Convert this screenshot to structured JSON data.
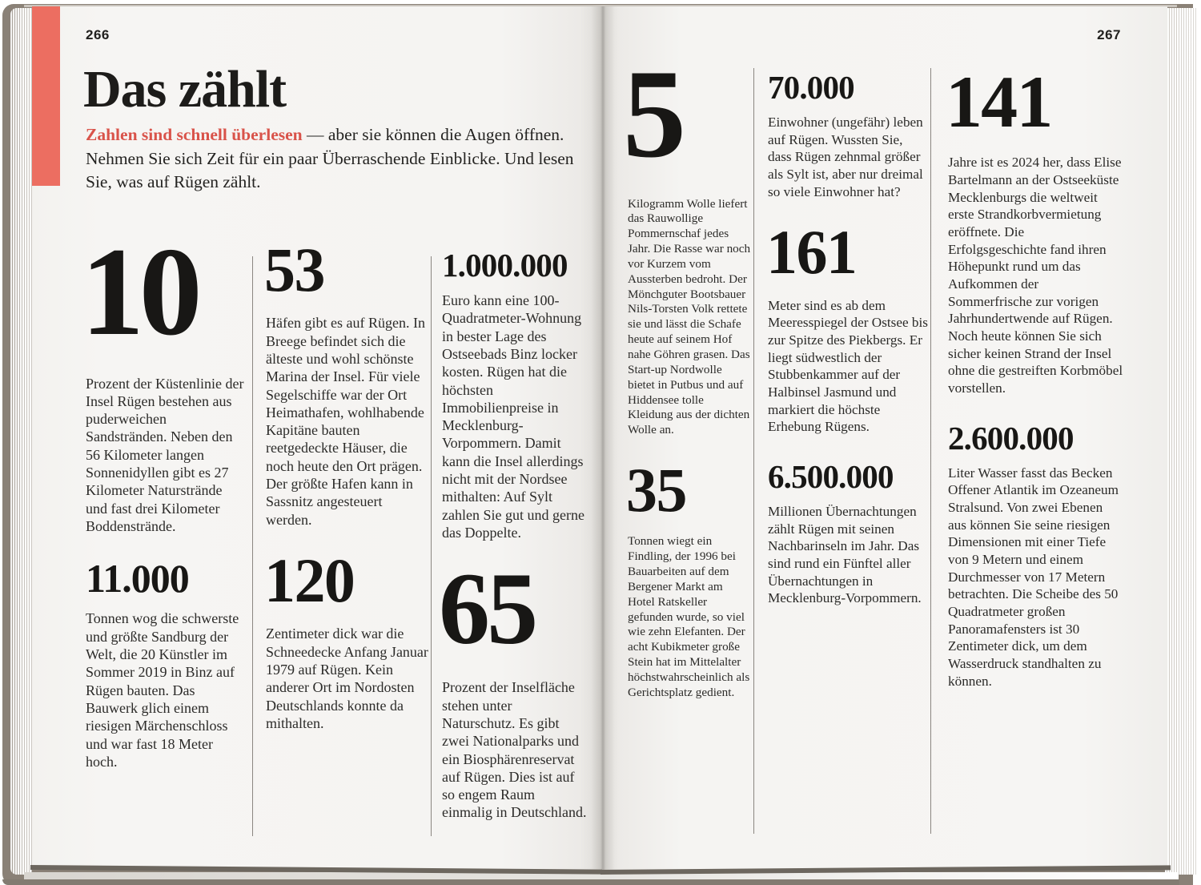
{
  "colors": {
    "accent_text_red": "#d9534a",
    "accent_bar_red": "#ec6e61",
    "paper": "#f6f5f3",
    "ink": "#1d1c1a",
    "cover": "#8a8177"
  },
  "book": {
    "left_page": {
      "page_number": "266",
      "title": "Das zählt",
      "intro": {
        "highlight": "Zahlen sind schnell überlesen",
        "after": " — aber sie können die Augen öffnen. Nehmen Sie sich Zeit für ein paar Über­raschende Einblicke. Und lesen Sie, was auf Rügen zählt."
      },
      "columns": [
        [
          {
            "number": "10",
            "size": "xxl",
            "text": "Prozent der Küstenlinie der Insel Rügen bestehen aus puderweichen Sandstränden. Neben den 56 Kilometer langen Sonnenidyllen gibt es 27 Kilometer Naturstrände und fast drei Kilometer Boddenstrände."
          },
          {
            "number": "11.000",
            "size": "sm",
            "text": "Tonnen wog die schwerste und größte Sandburg der Welt, die 20 Künstler im Sommer 2019 in Binz auf Rügen bauten. Das Bauwerk glich einem riesigen Märchenschloss und war fast 18 Meter hoch."
          }
        ],
        [
          {
            "number": "53",
            "size": "md",
            "text": "Häfen gibt es auf Rügen. In Breege befindet sich die älteste und wohl schönste Marina der Insel. Für viele Segelschiffe war der Ort Heimathafen, wohlhabende Kapitäne bauten reetgedeckte Häuser, die noch heute den Ort prägen. Der größte Hafen kann in Sassnitz angesteuert werden."
          },
          {
            "number": "120",
            "size": "md",
            "text": "Zentimeter dick war die Schneedecke Anfang Januar 1979 auf Rügen. Kein anderer Ort im Nordosten Deutschlands konnte da mithalten."
          }
        ],
        [
          {
            "number": "1.000.000",
            "size": "xs",
            "text": "Euro kann eine 100-Quadratmeter-Wohnung in bester Lage des Ostseebads Binz locker kosten. Rügen hat die höchsten Immobilienpreise in Mecklenburg-Vorpommern. Damit kann die Insel allerdings nicht mit der Nordsee mithalten: Auf Sylt zahlen Sie gut und gerne das Doppelte."
          },
          {
            "number": "65",
            "size": "xl",
            "text": "Prozent der Inselfläche stehen unter Naturschutz. Es gibt zwei Nationalparks und ein Biosphärenreservat auf Rügen. Dies ist auf so engem Raum einmalig in Deutschland."
          }
        ]
      ]
    },
    "right_page": {
      "page_number": "267",
      "columns": [
        [
          {
            "number": "5",
            "size": "xxl",
            "text": "Kilogramm Wolle liefert das Rauwollige Pommernschaf jedes Jahr. Die Rasse war noch vor Kurzem vom Aussterben bedroht. Der Mönchguter Bootsbauer Nils-Torsten Volk rettete sie und lässt die Schafe heute auf seinem Hof nahe Göhren grasen. Das Start-up Nordwolle bietet in Putbus und auf Hiddensee tolle Kleidung aus der dichten Wolle an."
          },
          {
            "number": "35",
            "size": "md",
            "text": "Tonnen wiegt ein Findling, der 1996 bei Bauarbeiten auf dem Bergener Markt am Hotel Ratskeller gefunden wurde, so viel wie zehn Elefanten. Der acht Kubikmeter große Stein hat im Mittelalter höchstwahrscheinlich als Gerichtsplatz gedient."
          }
        ],
        [
          {
            "number": "70.000",
            "size": "xs",
            "text": "Einwohner (ungefähr) leben auf Rügen. Wussten Sie, dass Rügen zehnmal größer als Sylt ist, aber nur dreimal so viele Einwohner hat?"
          },
          {
            "number": "161",
            "size": "md",
            "text": "Meter sind es ab dem Meeresspiegel der Ostsee bis zur Spitze des Piekbergs. Er liegt südwestlich der Stubbenkammer auf der Halbinsel Jasmund und markiert die höchste Erhebung Rügens."
          },
          {
            "number": "6.500.000",
            "size": "xs",
            "text": "Millionen Übernachtungen zählt Rügen mit seinen Nachbarinseln im Jahr. Das sind rund ein Fünftel aller Übernachtungen in Mecklenburg-Vorpommern."
          }
        ],
        [
          {
            "number": "141",
            "size": "lg",
            "text": "Jahre ist es 2024 her, dass Elise Bartelmann an der Ostseeküste Mecklenburgs die weltweit erste Strandkorbvermietung eröffnete. Die Erfolgsgeschichte fand ihren Höhepunkt rund um das Aufkommen der Sommerfrische zur vorigen Jahrhundertwende auf Rügen. Noch heute können Sie sich sicher keinen Strand der Insel ohne die gestreiften Korbmöbel vorstellen."
          },
          {
            "number": "2.600.000",
            "size": "xs",
            "text": "Liter Wasser fasst das Becken Offener Atlantik im Ozeaneum Stralsund. Von zwei Ebenen aus können Sie seine riesigen Dimensionen mit einer Tiefe von 9 Metern und einem Durchmesser von 17 Metern betrachten. Die Scheibe des 50 Quadratmeter großen Panoramafensters ist 30 Zentimeter dick, um dem Wasserdruck standhalten zu können."
          }
        ]
      ]
    }
  }
}
